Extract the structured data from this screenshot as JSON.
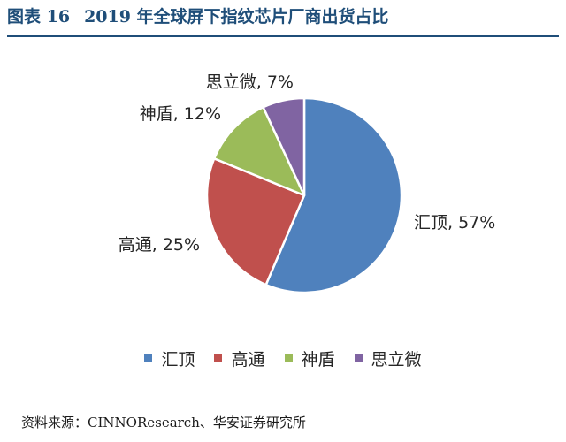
{
  "figure": {
    "number": "图表 16",
    "title": "2019 年全球屏下指纹芯片厂商出货占比"
  },
  "chart_data": {
    "type": "pie",
    "slices": [
      {
        "name": "汇顶",
        "value": 57,
        "label": "汇顶, 57%",
        "color": "#4f81bd"
      },
      {
        "name": "高通",
        "value": 25,
        "label": "高通, 25%",
        "color": "#c0504d"
      },
      {
        "name": "神盾",
        "value": 12,
        "label": "神盾, 12%",
        "color": "#9bbb59"
      },
      {
        "name": "思立微",
        "value": 7,
        "label": "思立微, 7%",
        "color": "#8064a2"
      }
    ],
    "legend_position": "bottom"
  },
  "source": "资料来源：CINNOResearch、华安证券研究所"
}
